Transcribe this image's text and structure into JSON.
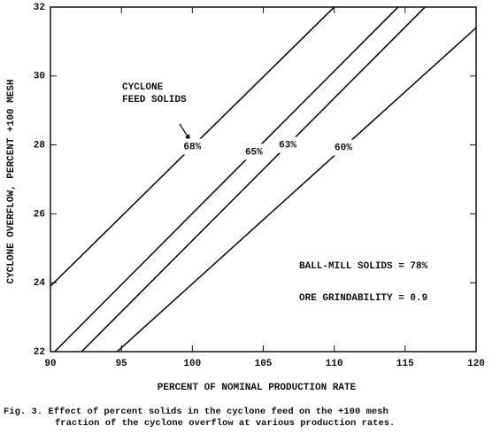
{
  "chart_data": {
    "type": "line",
    "xlabel": "PERCENT OF NOMINAL PRODUCTION RATE",
    "ylabel": "CYCLONE OVERFLOW, PERCENT +100 MESH",
    "series": [
      {
        "name": "68%",
        "color": "#111111",
        "x": [
          90,
          110
        ],
        "values": [
          23.9,
          32
        ]
      },
      {
        "name": "65%",
        "color": "#111111",
        "x": [
          90.3,
          114.5
        ],
        "values": [
          22,
          32
        ]
      },
      {
        "name": "63%",
        "color": "#111111",
        "x": [
          92.2,
          116.4
        ],
        "values": [
          22,
          32
        ]
      },
      {
        "name": "60%",
        "color": "#111111",
        "x": [
          94.7,
          120
        ],
        "values": [
          22,
          31.4
        ]
      }
    ],
    "xlim": [
      90,
      120
    ],
    "xticks": [
      90,
      95,
      100,
      105,
      110,
      115,
      120
    ],
    "ylim": [
      22,
      32
    ],
    "yticks": [
      22,
      24,
      26,
      28,
      30,
      32
    ],
    "annotations": [
      "CYCLONE",
      "FEED SOLIDS",
      "BALL-MILL SOLIDS = 78%",
      "ORE GRINDABILITY = 0.9"
    ],
    "caption": [
      "Fig. 3. Effect of percent solids in the cyclone feed on the +100 mesh",
      "fraction of the cyclone overflow at various production rates."
    ]
  }
}
